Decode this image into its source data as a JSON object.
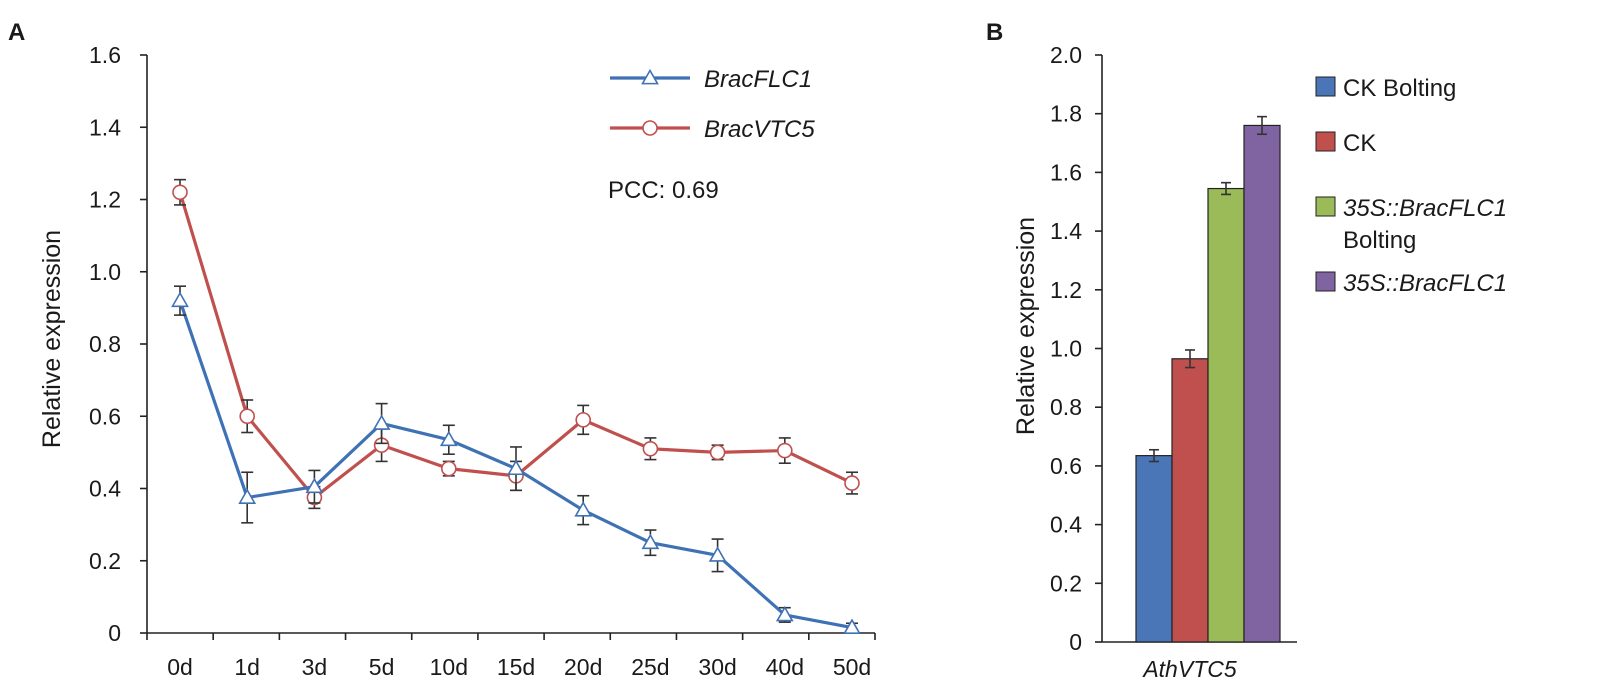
{
  "chart_data": [
    {
      "panel": "A",
      "type": "line",
      "ylabel": "Relative expression",
      "ylim": [
        0,
        1.6
      ],
      "yticks": [
        "0",
        "0.2",
        "0.4",
        "0.6",
        "0.8",
        "1.0",
        "1.2",
        "1.4",
        "1.6"
      ],
      "ytick_values": [
        0,
        0.2,
        0.4,
        0.6,
        0.8,
        1.0,
        1.2,
        1.4,
        1.6
      ],
      "categories": [
        "0d",
        "1d",
        "3d",
        "5d",
        "10d",
        "15d",
        "20d",
        "25d",
        "30d",
        "40d",
        "50d"
      ],
      "series": [
        {
          "name": "BracFLC1",
          "color": "#3f72b4",
          "marker": "triangle",
          "values": [
            0.92,
            0.375,
            0.405,
            0.58,
            0.535,
            0.455,
            0.34,
            0.25,
            0.215,
            0.05,
            0.015
          ],
          "errors": [
            0.04,
            0.07,
            0.045,
            0.055,
            0.04,
            0.06,
            0.04,
            0.035,
            0.045,
            0.02,
            0.012
          ]
        },
        {
          "name": "BracVTC5",
          "color": "#c0504d",
          "marker": "circle",
          "values": [
            1.22,
            0.6,
            0.375,
            0.52,
            0.455,
            0.435,
            0.59,
            0.51,
            0.5,
            0.505,
            0.415
          ],
          "errors": [
            0.035,
            0.045,
            0.03,
            0.045,
            0.02,
            0.04,
            0.04,
            0.03,
            0.02,
            0.035,
            0.03
          ]
        }
      ],
      "annotation": "PCC: 0.69",
      "annotation_color": "#2e3192",
      "legend_position": "top-right"
    },
    {
      "panel": "B",
      "type": "bar",
      "ylabel": "Relative expression",
      "ylim": [
        0,
        2.0
      ],
      "yticks": [
        "0",
        "0.2",
        "0.4",
        "0.6",
        "0.8",
        "1.0",
        "1.2",
        "1.4",
        "1.6",
        "1.8",
        "2.0"
      ],
      "ytick_values": [
        0,
        0.2,
        0.4,
        0.6,
        0.8,
        1.0,
        1.2,
        1.4,
        1.6,
        1.8,
        2.0
      ],
      "categories": [
        "AthVTC5"
      ],
      "series": [
        {
          "name_lines": [
            "CK Bolting"
          ],
          "color": "#4a76b8",
          "value": 0.635,
          "error": 0.02,
          "italic": false
        },
        {
          "name_lines": [
            "CK"
          ],
          "color": "#c0504d",
          "value": 0.965,
          "error": 0.03,
          "italic": false
        },
        {
          "name_lines": [
            "35S::BracFLC1",
            "Bolting"
          ],
          "color": "#9bbb59",
          "value": 1.545,
          "error": 0.02,
          "italic": true
        },
        {
          "name_lines": [
            "35S::BracFLC1"
          ],
          "color": "#8064a2",
          "value": 1.76,
          "error": 0.03,
          "italic": true
        }
      ],
      "legend_position": "right"
    }
  ]
}
